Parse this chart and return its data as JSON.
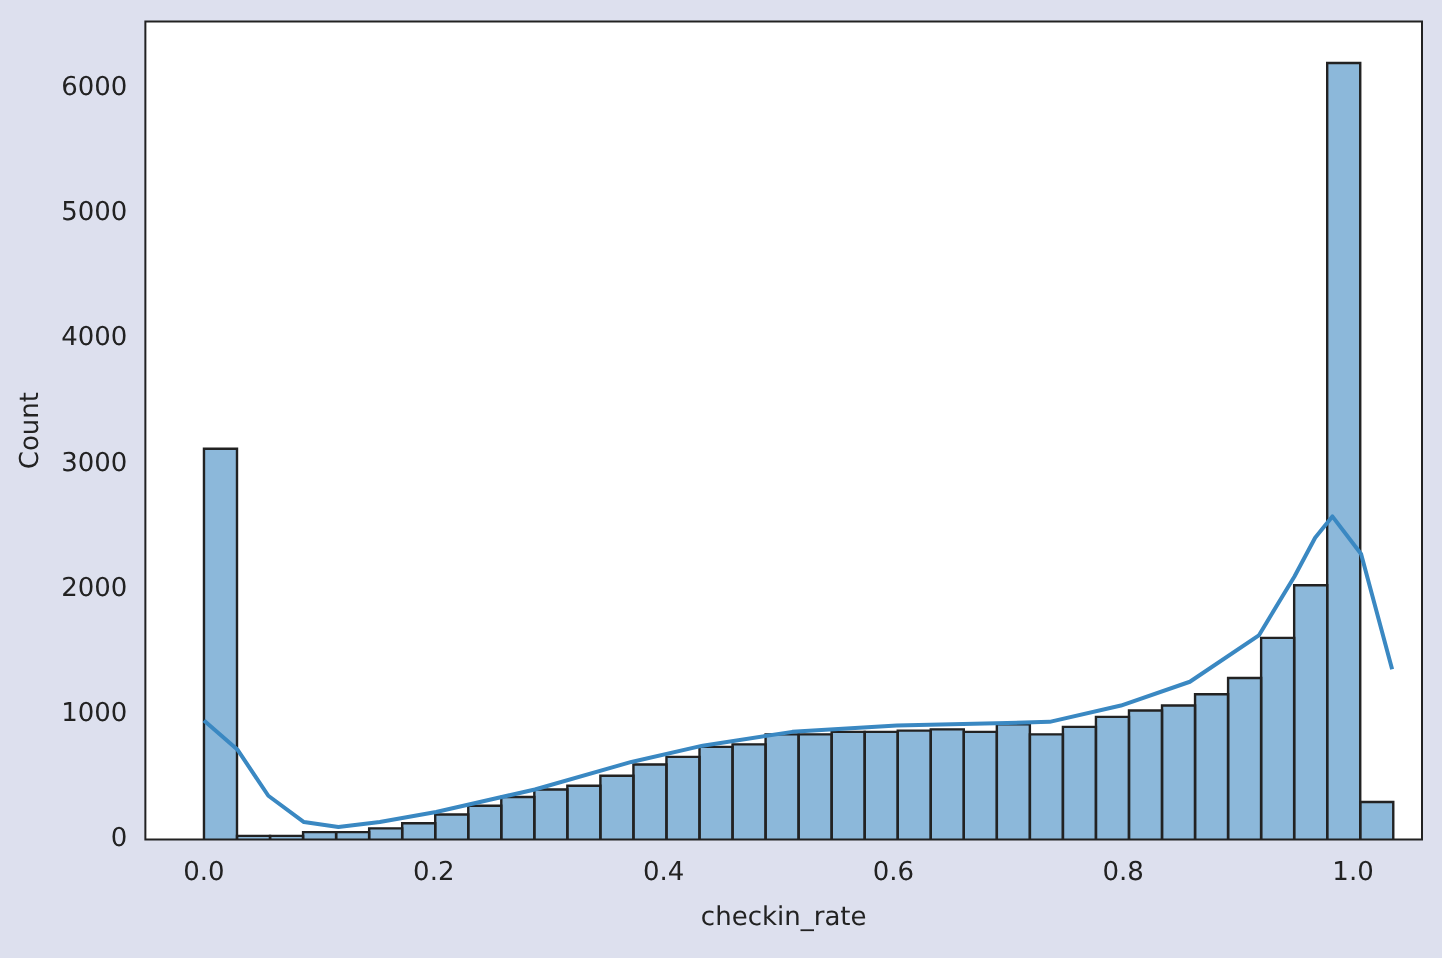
{
  "chart_data": {
    "type": "histogram",
    "xlabel": "checkin_rate",
    "ylabel": "Count",
    "color": "#8cb8da",
    "bins": [
      0,
      0.02875,
      0.0575,
      0.08625,
      0.115,
      0.14375,
      0.1725,
      0.20125,
      0.23,
      0.25875,
      0.2875,
      0.31625,
      0.345,
      0.37375,
      0.4025,
      0.43125,
      0.46,
      0.48875,
      0.5175,
      0.54625,
      0.575,
      0.60375,
      0.6325,
      0.66125,
      0.69,
      0.71875,
      0.7475,
      0.77625,
      0.805,
      0.83375,
      0.8625,
      0.89125,
      0.92,
      0.94875,
      0.9775,
      1.00625,
      1.035
    ],
    "values": [
      3120,
      30,
      30,
      60,
      60,
      90,
      130,
      200,
      270,
      340,
      400,
      430,
      510,
      600,
      660,
      740,
      760,
      840,
      840,
      860,
      860,
      870,
      880,
      860,
      920,
      840,
      900,
      980,
      1030,
      1070,
      1160,
      1290,
      1610,
      2030,
      6200,
      300
    ],
    "series": [
      {
        "type": "line",
        "color": "#3a88c2",
        "x": [
          0,
          0.029,
          0.056,
          0.087,
          0.117,
          0.153,
          0.202,
          0.288,
          0.372,
          0.434,
          0.512,
          0.603,
          0.736,
          0.798,
          0.858,
          0.918,
          0.949,
          0.967,
          0.982,
          1.007,
          1.034
        ],
        "values": [
          950,
          720,
          350,
          140,
          100,
          140,
          220,
          400,
          620,
          750,
          860,
          910,
          940,
          1070,
          1260,
          1630,
          2100,
          2410,
          2580,
          2280,
          1360
        ]
      }
    ],
    "xlim": [
      -0.051,
      1.06
    ],
    "ylim": [
      0,
      6530
    ],
    "xticks": [
      {
        "value": 0,
        "label": "0.0"
      },
      {
        "value": 0.2,
        "label": "0.2"
      },
      {
        "value": 0.4,
        "label": "0.4"
      },
      {
        "value": 0.6,
        "label": "0.6"
      },
      {
        "value": 0.8,
        "label": "0.8"
      },
      {
        "value": 1,
        "label": "1.0"
      }
    ],
    "yticks": [
      0,
      1000,
      2000,
      3000,
      4000,
      5000,
      6000
    ],
    "grid": false,
    "legend": false
  }
}
